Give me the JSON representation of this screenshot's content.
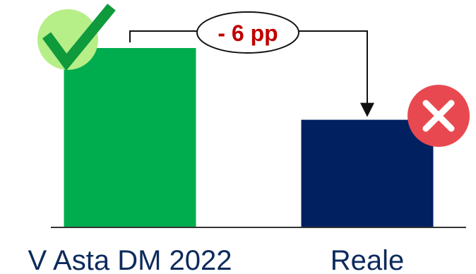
{
  "chart_data": {
    "type": "bar",
    "categories": [
      "V Asta DM 2022",
      "Reale"
    ],
    "values": [
      100,
      60
    ],
    "ylim": [
      0,
      100
    ],
    "grid": false,
    "legend": "none",
    "annotation": {
      "text": "- 6 pp",
      "from": "V Asta DM 2022",
      "to": "Reale"
    },
    "markers": [
      {
        "category": "V Asta DM 2022",
        "icon": "check-mark-icon"
      },
      {
        "category": "Reale",
        "icon": "cross-mark-icon"
      }
    ]
  },
  "colors": {
    "bar_1": "#00ad4e",
    "bar_2": "#002060",
    "axis": "#333333",
    "delta_text": "#c00000",
    "check_circle": "#b6ee88",
    "check_mark": "#0f9a3c",
    "cross_circle": "#e84950",
    "cross_mark": "#ffffff",
    "category_text": "#0d2a5c"
  }
}
